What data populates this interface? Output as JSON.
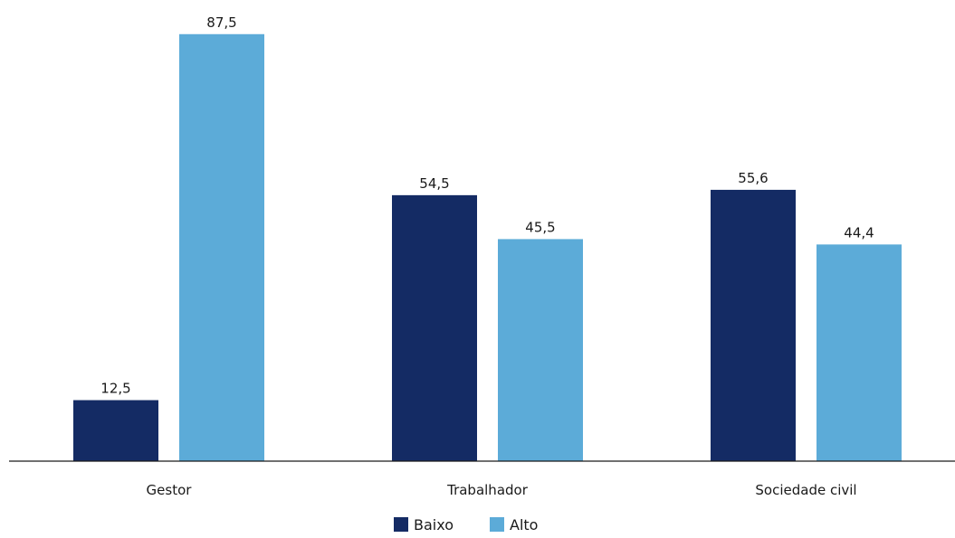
{
  "chart_data": {
    "type": "bar",
    "title": "",
    "xlabel": "",
    "ylabel": "",
    "ylim": [
      0,
      90
    ],
    "grid": false,
    "legend_position": "bottom-center",
    "categories": [
      "Gestor",
      "Trabalhador",
      "Sociedade civil"
    ],
    "series": [
      {
        "name": "Baixo",
        "color": "#142b64",
        "values": [
          12.5,
          54.5,
          55.6
        ],
        "labels": [
          "12,5",
          "54,5",
          "55,6"
        ]
      },
      {
        "name": "Alto",
        "color": "#5cabd8",
        "values": [
          87.5,
          45.5,
          44.4
        ],
        "labels": [
          "87,5",
          "45,5",
          "44,4"
        ]
      }
    ]
  }
}
